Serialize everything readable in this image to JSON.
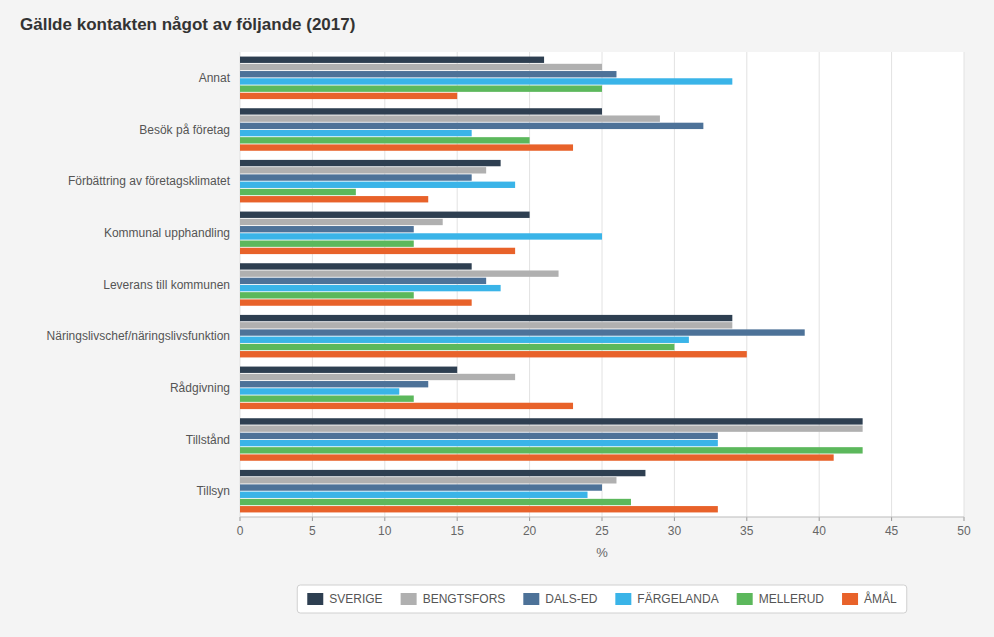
{
  "chart_data": {
    "type": "bar",
    "orientation": "horizontal",
    "title": "Gällde kontakten något av följande (2017)",
    "categories": [
      "Annat",
      "Besök på företag",
      "Förbättring av företagsklimatet",
      "Kommunal upphandling",
      "Leverans till kommunen",
      "Näringslivschef/näringslivsfunktion",
      "Rådgivning",
      "Tillstånd",
      "Tillsyn"
    ],
    "series": [
      {
        "name": "SVERIGE",
        "color": "#2e3f51",
        "values": [
          21,
          25,
          18,
          20,
          16,
          34,
          15,
          43,
          28
        ]
      },
      {
        "name": "BENGTSFORS",
        "color": "#b0b0b0",
        "values": [
          25,
          29,
          17,
          14,
          22,
          34,
          19,
          43,
          26
        ]
      },
      {
        "name": "DALS-ED",
        "color": "#4d7298",
        "values": [
          26,
          32,
          16,
          12,
          17,
          39,
          13,
          33,
          25
        ]
      },
      {
        "name": "FÄRGELANDA",
        "color": "#3ab4e8",
        "values": [
          34,
          16,
          19,
          25,
          18,
          31,
          11,
          33,
          24
        ]
      },
      {
        "name": "MELLERUD",
        "color": "#5cb85c",
        "values": [
          25,
          20,
          8,
          12,
          12,
          30,
          12,
          43,
          27
        ]
      },
      {
        "name": "ÅMÅL",
        "color": "#e8622a",
        "values": [
          15,
          23,
          13,
          19,
          16,
          35,
          23,
          41,
          33
        ]
      }
    ],
    "xlabel": "%",
    "xlim": [
      0,
      50
    ],
    "xticks": [
      0,
      5,
      10,
      15,
      20,
      25,
      30,
      35,
      40,
      45,
      50
    ],
    "grid": true,
    "legend": "bottom"
  }
}
